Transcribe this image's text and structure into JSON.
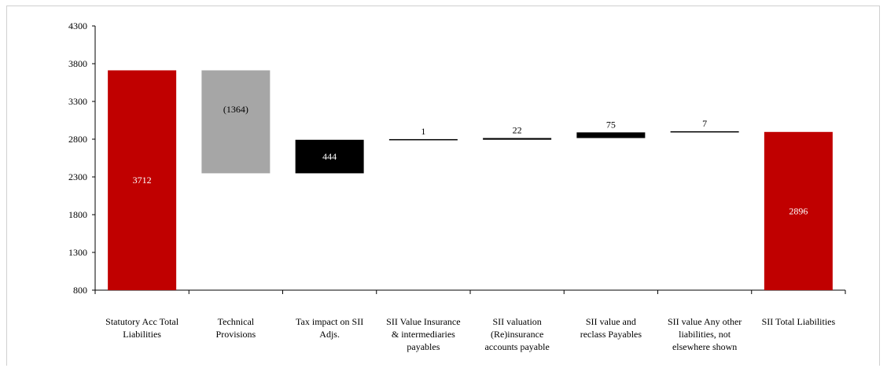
{
  "chart_data": {
    "type": "bar",
    "subtype": "waterfall",
    "title": "",
    "xlabel": "",
    "ylabel": "",
    "ylim": [
      800,
      4300
    ],
    "yticks": [
      800,
      1300,
      1800,
      2300,
      2800,
      3300,
      3800,
      4300
    ],
    "grid": false,
    "categories": [
      [
        "Statutory Acc Total",
        "Liabilities"
      ],
      [
        "Technical",
        "Provisions"
      ],
      [
        "Tax impact on SII",
        "Adjs."
      ],
      [
        "SII Value Insurance",
        "& intermediaries",
        "payables"
      ],
      [
        "SII valuation",
        "(Re)insurance",
        "accounts payable"
      ],
      [
        "SII value and",
        "reclass Payables"
      ],
      [
        "SII value Any other",
        "liabilities, not",
        "elsewhere shown"
      ],
      [
        "SII Total Liabilities"
      ]
    ],
    "bars": [
      {
        "kind": "total",
        "start": 0,
        "end": 3712,
        "label": "3712",
        "color": "#c00000",
        "label_color": "#ffffff",
        "label_pos": "inside"
      },
      {
        "kind": "delta",
        "start": 3712,
        "end": 2348,
        "label": "(1364)",
        "color": "#a6a6a6",
        "label_color": "#000000",
        "label_pos": "inside-upper"
      },
      {
        "kind": "delta",
        "start": 2348,
        "end": 2792,
        "label": "444",
        "color": "#000000",
        "label_color": "#ffffff",
        "label_pos": "inside"
      },
      {
        "kind": "delta",
        "start": 2792,
        "end": 2793,
        "label": "1",
        "color": "#000000",
        "label_color": "#000000",
        "label_pos": "above"
      },
      {
        "kind": "delta",
        "start": 2793,
        "end": 2815,
        "label": "22",
        "color": "#000000",
        "label_color": "#000000",
        "label_pos": "above"
      },
      {
        "kind": "delta",
        "start": 2815,
        "end": 2890,
        "label": "75",
        "color": "#000000",
        "label_color": "#000000",
        "label_pos": "above"
      },
      {
        "kind": "delta",
        "start": 2890,
        "end": 2897,
        "label": "7",
        "color": "#000000",
        "label_color": "#000000",
        "label_pos": "above"
      },
      {
        "kind": "total",
        "start": 0,
        "end": 2896,
        "label": "2896",
        "color": "#c00000",
        "label_color": "#ffffff",
        "label_pos": "inside"
      }
    ]
  }
}
